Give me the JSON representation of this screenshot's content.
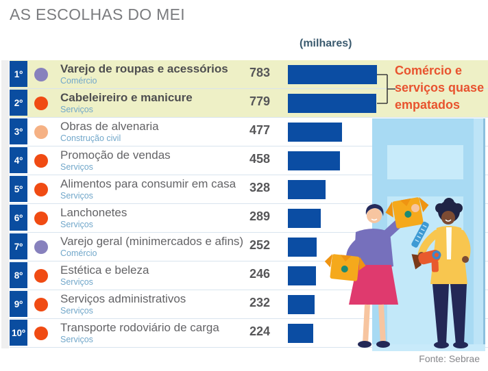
{
  "header": {
    "title": "AS ESCOLHAS DO MEI",
    "unit_label": "(milhares)"
  },
  "annotation": {
    "text": "Comércio e serviços quase empatados",
    "lines": [
      "Comércio e",
      "serviços quase",
      "empatados"
    ]
  },
  "footer": {
    "source": "Fonte: Sebrae"
  },
  "colors": {
    "bar": "#0b4da3",
    "rank_bg": "#0a4da0",
    "highlight": "#eef0c6",
    "annotation": "#e8532e",
    "category": "#71a7ca",
    "bracket": "#3c3c3c",
    "panel_blue": "#a8daf3",
    "dot_purple": "#8781bd",
    "dot_orange": "#f04b13",
    "dot_peach": "#f5b184"
  },
  "chart_data": {
    "type": "bar",
    "orientation": "horizontal",
    "title": "AS ESCOLHAS DO MEI",
    "unit": "milhares",
    "value_axis_max": 783,
    "legend_note": "Top-2 rows highlighted with note: Comércio e serviços quase empatados",
    "categories": [
      "Varejo de roupas e acessórios",
      "Cabeleireiro e manicure",
      "Obras de alvenaria",
      "Promoção de vendas",
      "Alimentos para consumir em casa",
      "Lanchonetes",
      "Varejo geral (minimercados e afins)",
      "Estética e beleza",
      "Serviços administrativos",
      "Transporte rodoviário de carga"
    ],
    "values": [
      783,
      779,
      477,
      458,
      328,
      289,
      252,
      246,
      232,
      224
    ],
    "rows": [
      {
        "rank": "1º",
        "name": "Varejo de roupas e acessórios",
        "category": "Comércio",
        "value": 783,
        "dot_color": "#8781bd",
        "highlighted": true
      },
      {
        "rank": "2º",
        "name": "Cabeleireiro e manicure",
        "category": "Serviços",
        "value": 779,
        "dot_color": "#f04b13",
        "highlighted": true
      },
      {
        "rank": "3º",
        "name": "Obras de alvenaria",
        "category": "Construção civil",
        "value": 477,
        "dot_color": "#f5b184",
        "highlighted": false
      },
      {
        "rank": "4º",
        "name": "Promoção de vendas",
        "category": "Serviços",
        "value": 458,
        "dot_color": "#f04b13",
        "highlighted": false
      },
      {
        "rank": "5º",
        "name": "Alimentos para consumir em casa",
        "category": "Serviços",
        "value": 328,
        "dot_color": "#f04b13",
        "highlighted": false
      },
      {
        "rank": "6º",
        "name": "Lanchonetes",
        "category": "Serviços",
        "value": 289,
        "dot_color": "#f04b13",
        "highlighted": false
      },
      {
        "rank": "7º",
        "name": "Varejo geral (minimercados e afins)",
        "category": "Comércio",
        "value": 252,
        "dot_color": "#8781bd",
        "highlighted": false
      },
      {
        "rank": "8º",
        "name": "Estética e beleza",
        "category": "Serviços",
        "value": 246,
        "dot_color": "#f04b13",
        "highlighted": false
      },
      {
        "rank": "9º",
        "name": "Serviços administrativos",
        "category": "Serviços",
        "value": 232,
        "dot_color": "#f04b13",
        "highlighted": false
      },
      {
        "rank": "10º",
        "name": "Transporte rodoviário de carga",
        "category": "Serviços",
        "value": 224,
        "dot_color": "#f04b13",
        "highlighted": false
      }
    ]
  }
}
